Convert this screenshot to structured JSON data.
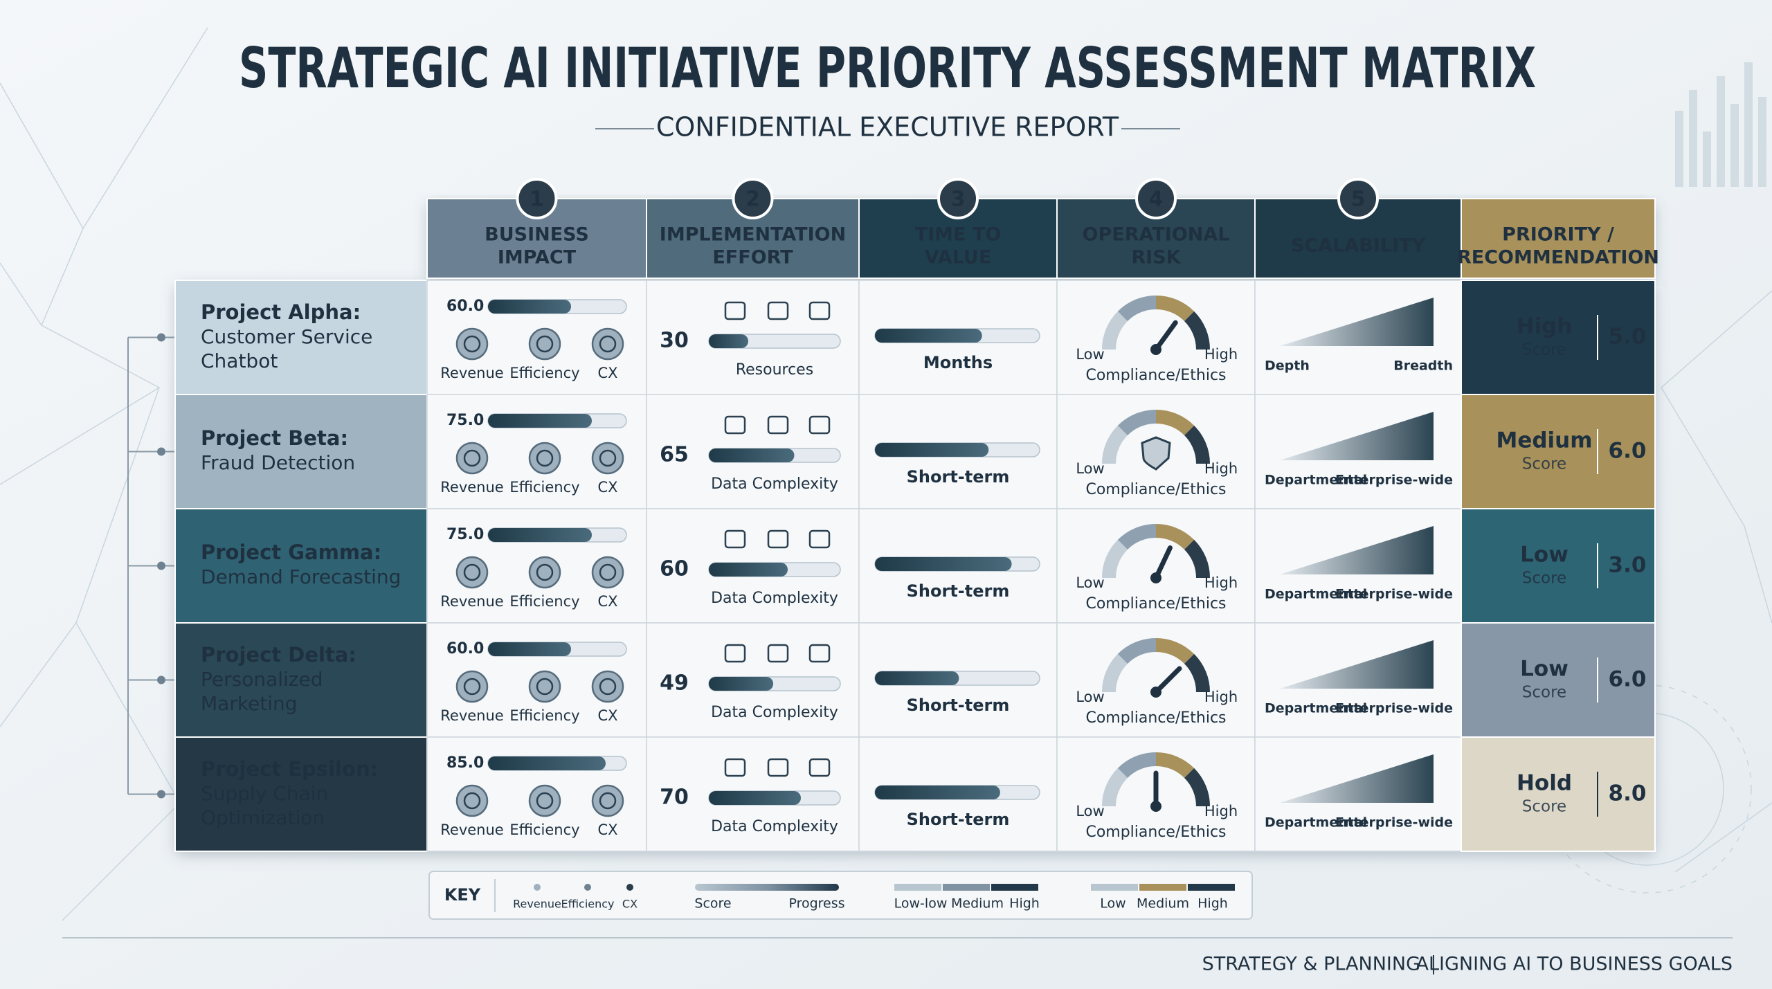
{
  "header": {
    "title": "STRATEGIC AI INITIATIVE PRIORITY ASSESSMENT MATRIX",
    "subtitle": "CONFIDENTIAL EXECUTIVE REPORT"
  },
  "columns": [
    {
      "number": 1,
      "lines": [
        "BUSINESS",
        "IMPACT"
      ]
    },
    {
      "number": 2,
      "lines": [
        "IMPLEMENTATION",
        "EFFORT"
      ]
    },
    {
      "number": 3,
      "lines": [
        "TIME TO",
        "VALUE"
      ]
    },
    {
      "number": 4,
      "lines": [
        "OPERATIONAL",
        "RISK"
      ]
    },
    {
      "number": 5,
      "lines": [
        "SCALABILITY"
      ]
    },
    {
      "lines": [
        "PRIORITY /",
        "RECOMMENDATION"
      ]
    }
  ],
  "impact_labels": [
    "Revenue",
    "Efficiency",
    "CX"
  ],
  "risk_labels": {
    "low": "Low",
    "high": "High",
    "caption": "Compliance/Ethics"
  },
  "score_label": "Score",
  "rows": [
    {
      "name": "Project Alpha:",
      "lines": [
        "Customer Service",
        "Chatbot"
      ],
      "impact": {
        "value": 60,
        "label": "60.0"
      },
      "effort": 30,
      "effort_label": "Resources",
      "time_progress": 65,
      "time_label": "Months",
      "risk": 70,
      "scale_labels": [
        "Depth",
        "Breadth"
      ],
      "priority": "High",
      "score": "5.0"
    },
    {
      "name": "Project Beta:",
      "lines": [
        "Fraud Detection"
      ],
      "impact": {
        "value": 75,
        "label": "75.0"
      },
      "effort": 65,
      "effort_label": "Data Complexity",
      "time_progress": 69,
      "time_label": "Short-term",
      "scale_labels": [
        "Departmental",
        "Enterprise-wide"
      ],
      "priority": "Medium",
      "score": "6.0"
    },
    {
      "name": "Project Gamma:",
      "lines": [
        "Demand Forecasting"
      ],
      "impact": {
        "value": 75,
        "label": "75.0"
      },
      "effort": 60,
      "effort_label": "Data Complexity",
      "time_progress": 83,
      "time_label": "Short-term",
      "risk": 64,
      "scale_labels": [
        "Departmental",
        "Enterprise-wide"
      ],
      "priority": "Low",
      "score": "3.0"
    },
    {
      "name": "Project Delta:",
      "lines": [
        "Personalized",
        "Marketing"
      ],
      "impact": {
        "value": 60,
        "label": "60.0"
      },
      "effort": 49,
      "effort_label": "Data Complexity",
      "time_progress": 51,
      "time_label": "Short-term",
      "risk": 75,
      "scale_labels": [
        "Departmental",
        "Enterprise-wide"
      ],
      "priority": "Low",
      "score": "6.0"
    },
    {
      "name": "Project Epsilon:",
      "lines": [
        "Supply Chain",
        "Optimization"
      ],
      "impact": {
        "value": 85,
        "label": "85.0"
      },
      "effort": 70,
      "effort_label": "Data Complexity",
      "time_progress": 76,
      "time_label": "Short-term",
      "risk": 50,
      "scale_labels": [
        "Departmental",
        "Enterprise-wide"
      ],
      "priority": "Hold",
      "score": "8.0"
    }
  ],
  "key": {
    "title": "KEY",
    "dots": [
      "Revenue",
      "Efficiency",
      "CX"
    ],
    "bar1": [
      "Score",
      "Progress"
    ],
    "bar2": [
      "Low-low",
      "Medium",
      "High"
    ],
    "bar3": [
      "Low",
      "Medium",
      "High"
    ]
  },
  "footer": [
    "STRATEGY & PLANNING",
    "ALIGNING AI TO BUSINESS GOALS"
  ]
}
